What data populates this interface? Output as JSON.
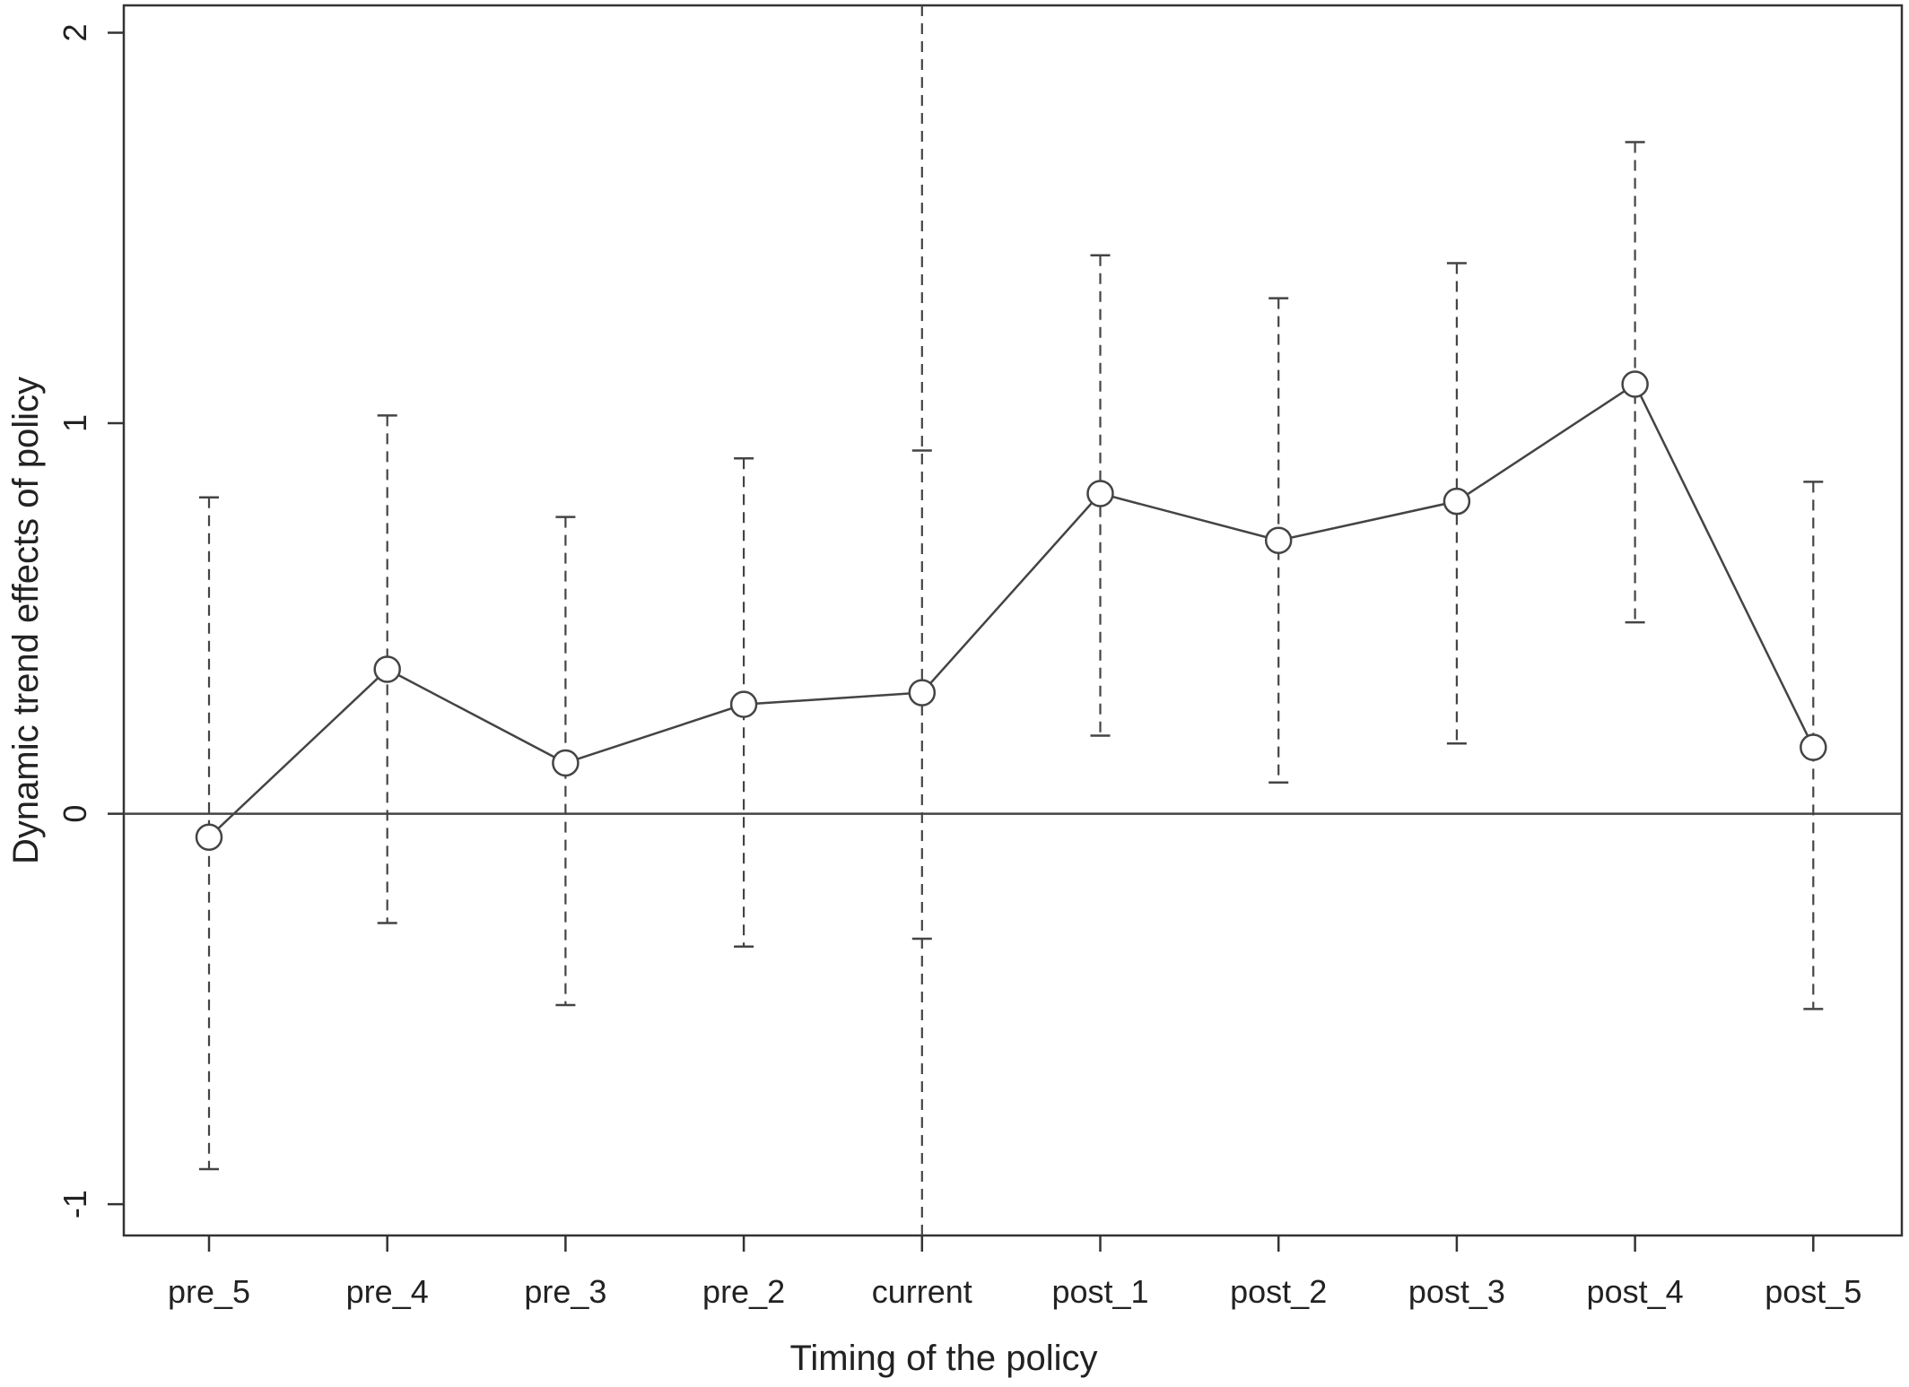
{
  "chart_data": {
    "type": "line",
    "xlabel": "Timing of the policy",
    "ylabel": "Dynamic trend effects of policy",
    "categories": [
      "pre_5",
      "pre_4",
      "pre_3",
      "pre_2",
      "current",
      "post_1",
      "post_2",
      "post_3",
      "post_4",
      "post_5"
    ],
    "values": [
      -0.06,
      0.37,
      0.13,
      0.28,
      0.31,
      0.82,
      0.7,
      0.8,
      1.1,
      0.17
    ],
    "ci_lower": [
      -0.91,
      -0.28,
      -0.49,
      -0.34,
      -0.32,
      0.2,
      0.08,
      0.18,
      0.49,
      -0.5
    ],
    "ci_upper": [
      0.81,
      1.02,
      0.76,
      0.91,
      0.93,
      1.43,
      1.32,
      1.41,
      1.72,
      0.85
    ],
    "ylim": [
      -1.08,
      2.07
    ],
    "yticks": [
      "-1",
      "0",
      "1",
      "2"
    ],
    "reference_hline": 0,
    "reference_vline": "current",
    "grid": false,
    "legend": "none",
    "colors": {
      "line": "#444444",
      "axis": "#333333"
    }
  }
}
